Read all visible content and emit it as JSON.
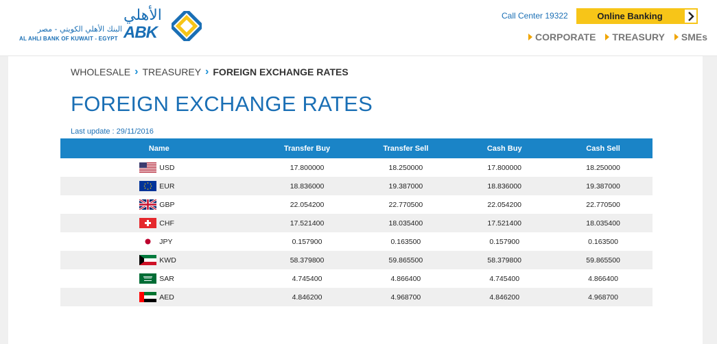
{
  "header": {
    "logo": {
      "arabic_name": "البنك الأهلي الكويتي - مصر",
      "english_name": "AL AHLI BANK OF KUWAIT - EGYPT",
      "arabic_mark": "الأهلي",
      "abk": "ABK"
    },
    "call_center": "Call Center 19322",
    "online_banking": "Online Banking",
    "nav": [
      "CORPORATE",
      "TREASURY",
      "SMEs"
    ]
  },
  "breadcrumb": {
    "items": [
      "WHOLESALE",
      "TREASUREY"
    ],
    "current": "FOREIGN EXCHANGE RATES"
  },
  "page_title": "FOREIGN EXCHANGE RATES",
  "last_update": "Last update : 29/11/2016",
  "table": {
    "columns": [
      "Name",
      "Transfer Buy",
      "Transfer Sell",
      "Cash Buy",
      "Cash Sell"
    ],
    "rows": [
      {
        "currency": "USD",
        "flag": "us-flag-icon",
        "transfer_buy": "17.800000",
        "transfer_sell": "18.250000",
        "cash_buy": "17.800000",
        "cash_sell": "18.250000"
      },
      {
        "currency": "EUR",
        "flag": "eu-flag-icon",
        "transfer_buy": "18.836000",
        "transfer_sell": "19.387000",
        "cash_buy": "18.836000",
        "cash_sell": "19.387000"
      },
      {
        "currency": "GBP",
        "flag": "uk-flag-icon",
        "transfer_buy": "22.054200",
        "transfer_sell": "22.770500",
        "cash_buy": "22.054200",
        "cash_sell": "22.770500"
      },
      {
        "currency": "CHF",
        "flag": "ch-flag-icon",
        "transfer_buy": "17.521400",
        "transfer_sell": "18.035400",
        "cash_buy": "17.521400",
        "cash_sell": "18.035400"
      },
      {
        "currency": "JPY",
        "flag": "jp-flag-icon",
        "transfer_buy": "0.157900",
        "transfer_sell": "0.163500",
        "cash_buy": "0.157900",
        "cash_sell": "0.163500"
      },
      {
        "currency": "KWD",
        "flag": "kw-flag-icon",
        "transfer_buy": "58.379800",
        "transfer_sell": "59.865500",
        "cash_buy": "58.379800",
        "cash_sell": "59.865500"
      },
      {
        "currency": "SAR",
        "flag": "sa-flag-icon",
        "transfer_buy": "4.745400",
        "transfer_sell": "4.866400",
        "cash_buy": "4.745400",
        "cash_sell": "4.866400"
      },
      {
        "currency": "AED",
        "flag": "ae-flag-icon",
        "transfer_buy": "4.846200",
        "transfer_sell": "4.968700",
        "cash_buy": "4.846200",
        "cash_sell": "4.968700"
      }
    ]
  },
  "colors": {
    "brand_blue": "#1a6fb5",
    "table_header": "#1a84c7",
    "accent_yellow": "#f7c518",
    "nav_arrow": "#f0a500"
  }
}
